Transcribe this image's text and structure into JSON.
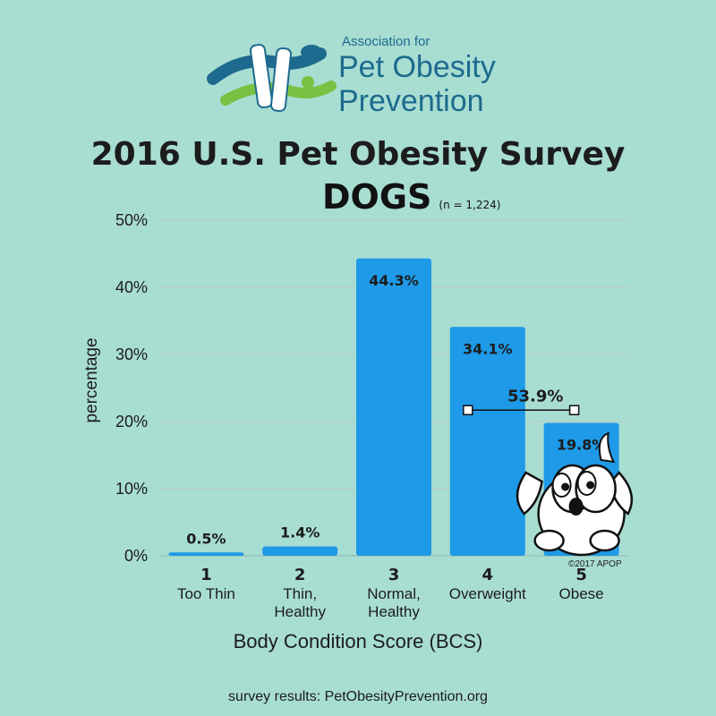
{
  "logo": {
    "line1": "Association for",
    "line2": "Pet Obesity",
    "line3": "Prevention"
  },
  "title": "2016 U.S. Pet Obesity Survey",
  "subtitle": "DOGS",
  "sample_size": "(n = 1,224)",
  "footer": "survey results: PetObesityPrevention.org",
  "copyright": "©2017 APOP",
  "colors": {
    "background": "#a8ddd2",
    "bar": "#1e9ae8",
    "text": "#1c1c1c",
    "logo_blue": "#1d6a8e",
    "logo_green": "#7ac143"
  },
  "chart_data": {
    "type": "bar",
    "xlabel": "Body Condition Score (BCS)",
    "ylabel": "percentage",
    "ylim": [
      0,
      50
    ],
    "yticks": [
      "0%",
      "10%",
      "20%",
      "30%",
      "40%",
      "50%"
    ],
    "grid": true,
    "categories": [
      {
        "num": "1",
        "label": [
          "Too Thin"
        ]
      },
      {
        "num": "2",
        "label": [
          "Thin,",
          "Healthy"
        ]
      },
      {
        "num": "3",
        "label": [
          "Normal,",
          "Healthy"
        ]
      },
      {
        "num": "4",
        "label": [
          "Overweight"
        ]
      },
      {
        "num": "5",
        "label": [
          "Obese"
        ]
      }
    ],
    "values": [
      0.5,
      1.4,
      44.3,
      34.1,
      19.8
    ],
    "data_labels": [
      "0.5%",
      "1.4%",
      "44.3%",
      "34.1%",
      "19.8%"
    ],
    "annotation": {
      "label": "53.9%",
      "y": 21.7,
      "spans": [
        "4",
        "5"
      ]
    }
  }
}
